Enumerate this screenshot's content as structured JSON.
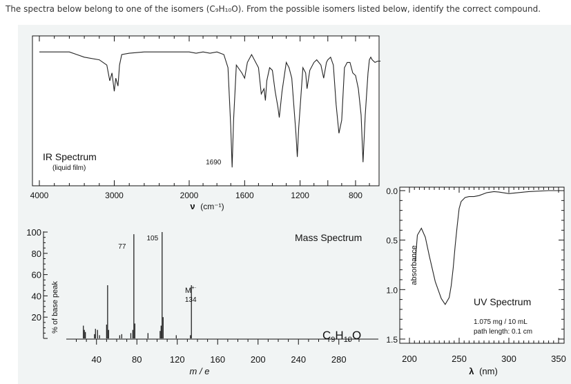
{
  "question": {
    "text": "The spectra below belong to one of the isomers (C₉H₁₀O).  From the possible isomers listed below, identify the correct compound."
  },
  "chart_data": [
    {
      "type": "line",
      "title": "IR Spectrum",
      "subtitle": "(liquid film)",
      "xlabel_main": "ν",
      "xlabel_unit": "(cm⁻¹)",
      "x_ticks": [
        "4000",
        "3000",
        "2000",
        "1600",
        "1200",
        "800"
      ],
      "xlim": [
        4000,
        600
      ],
      "annotations": [
        {
          "x": 1690,
          "label": "1690"
        }
      ],
      "x": [
        4000,
        3600,
        3500,
        3400,
        3200,
        3100,
        3060,
        3030,
        3000,
        2980,
        2950,
        2930,
        2900,
        2800,
        2600,
        2400,
        2200,
        2000,
        1950,
        1900,
        1850,
        1800,
        1750,
        1720,
        1700,
        1690,
        1680,
        1660,
        1620,
        1600,
        1580,
        1550,
        1500,
        1480,
        1460,
        1450,
        1440,
        1420,
        1400,
        1380,
        1360,
        1350,
        1330,
        1300,
        1280,
        1260,
        1230,
        1220,
        1210,
        1180,
        1160,
        1150,
        1130,
        1100,
        1080,
        1050,
        1030,
        1010,
        1000,
        980,
        960,
        940,
        920,
        900,
        880,
        860,
        840,
        820,
        800,
        780,
        760,
        746,
        730,
        710,
        700,
        690,
        680,
        660,
        640,
        620
      ],
      "y": [
        92,
        92,
        90,
        88,
        86,
        82,
        70,
        76,
        62,
        72,
        66,
        82,
        90,
        91,
        92,
        92,
        92,
        92,
        91,
        92,
        91,
        92,
        90,
        80,
        35,
        4,
        40,
        82,
        76,
        72,
        84,
        90,
        80,
        60,
        64,
        55,
        70,
        80,
        78,
        62,
        50,
        42,
        62,
        84,
        80,
        72,
        30,
        12,
        34,
        80,
        76,
        64,
        78,
        84,
        86,
        82,
        72,
        84,
        86,
        88,
        82,
        52,
        30,
        40,
        80,
        84,
        84,
        76,
        74,
        64,
        44,
        8,
        44,
        76,
        86,
        88,
        86,
        84,
        85,
        85
      ]
    },
    {
      "type": "bar",
      "title": "Mass Spectrum",
      "ylabel": "% of base peak",
      "xlabel": "m / e",
      "formula_main": "C",
      "formula_sub1": "9",
      "formula_h": "H",
      "formula_sub2": "10",
      "formula_o": "O",
      "x_ticks": [
        "40",
        "80",
        "120",
        "160",
        "200",
        "240",
        "280"
      ],
      "y_ticks": [
        "100",
        "80",
        "60",
        "40",
        "20"
      ],
      "xlim": [
        20,
        300
      ],
      "ylim": [
        0,
        100
      ],
      "labels": [
        {
          "mz": 77,
          "text": "77"
        },
        {
          "mz": 105,
          "text": "105"
        },
        {
          "mz": 134,
          "text_main": "M",
          "text_sup": "+·",
          "text_value": "134"
        }
      ],
      "mz": [
        27,
        28,
        29,
        38,
        39,
        41,
        43,
        50,
        51,
        52,
        63,
        65,
        74,
        76,
        77,
        78,
        91,
        103,
        104,
        105,
        106,
        119,
        133,
        134
      ],
      "intensity": [
        12,
        8,
        6,
        4,
        9,
        8,
        3,
        13,
        50,
        8,
        3,
        4,
        5,
        8,
        98,
        14,
        5,
        7,
        12,
        100,
        20,
        3,
        3,
        50
      ]
    },
    {
      "type": "line",
      "title": "UV Spectrum",
      "ylabel": "absorbance",
      "xlabel_main": "λ",
      "xlabel_unit": "(nm)",
      "note1": "1.075 mg / 10 mL",
      "note2": "path length: 0.1 cm",
      "x_ticks": [
        "200",
        "250",
        "300",
        "350"
      ],
      "y_ticks": [
        "0.0",
        "0.5",
        "1.0",
        "1.5"
      ],
      "xlim": [
        200,
        350
      ],
      "ylim": [
        0,
        1.5
      ],
      "x": [
        206,
        208,
        212,
        216,
        220,
        226,
        232,
        236,
        240,
        242,
        244,
        246,
        248,
        250,
        252,
        256,
        260,
        265,
        270,
        278,
        285,
        290,
        300,
        320,
        340,
        350
      ],
      "y": [
        0.71,
        0.45,
        0.38,
        0.47,
        0.66,
        0.92,
        1.09,
        1.15,
        1.08,
        0.96,
        0.78,
        0.56,
        0.36,
        0.18,
        0.11,
        0.07,
        0.06,
        0.06,
        0.05,
        0.02,
        0.01,
        0.015,
        0.03,
        0.01,
        0.0,
        0.0
      ]
    }
  ]
}
